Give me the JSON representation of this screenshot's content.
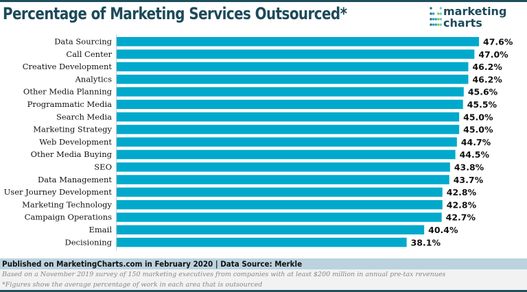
{
  "header": {
    "title": "Percentage of Marketing Services Outsourced*",
    "logo_line1": "marketing",
    "logo_line2": "charts"
  },
  "chart_data": {
    "type": "bar",
    "orientation": "horizontal",
    "title": "Percentage of Marketing Services Outsourced*",
    "categories": [
      "Data Sourcing",
      "Call Center",
      "Creative Development",
      "Analytics",
      "Other Media Planning",
      "Programmatic Media",
      "Search Media",
      "Marketing Strategy",
      "Web Development",
      "Other Media Buying",
      "SEO",
      "Data Management",
      "User Journey Development",
      "Marketing Technology",
      "Campaign Operations",
      "Email",
      "Decisioning"
    ],
    "values": [
      47.6,
      47.0,
      46.2,
      46.2,
      45.6,
      45.5,
      45.0,
      45.0,
      44.7,
      44.5,
      43.8,
      43.7,
      42.8,
      42.8,
      42.7,
      40.4,
      38.1
    ],
    "data_labels": [
      "47.6%",
      "47.0%",
      "46.2%",
      "46.2%",
      "45.6%",
      "45.5%",
      "45.0%",
      "45.0%",
      "44.7%",
      "44.5%",
      "43.8%",
      "43.7%",
      "42.8%",
      "42.8%",
      "42.7%",
      "40.4%",
      "38.1%"
    ],
    "xlim": [
      0,
      47.6
    ],
    "grid": false,
    "bar_color": "#00a9cc"
  },
  "footer": {
    "published": "Published on MarketingCharts.com in February 2020 | Data Source: Merkle",
    "note1": "Based on a November 2019 survey of 150 marketing executives from companies with at least $200 million in annual pre-tax revenues",
    "note2": "*Figures show the average percentage of work in each area that is outsourced"
  }
}
